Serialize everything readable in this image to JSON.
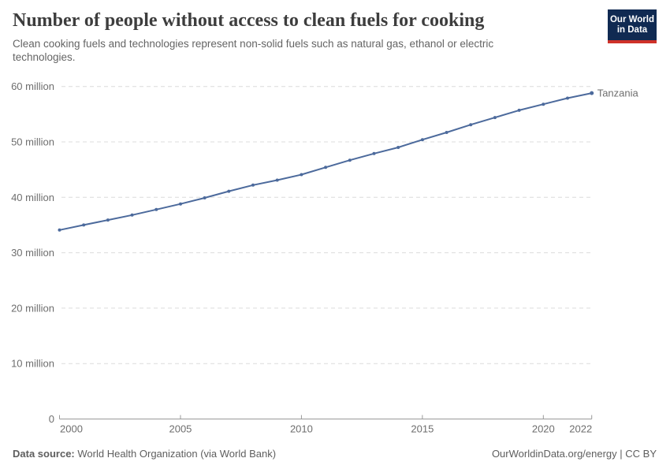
{
  "header": {
    "title": "Number of people without access to clean fuels for cooking",
    "subtitle": "Clean cooking fuels and technologies represent non-solid fuels such as natural gas, ethanol or electric technologies.",
    "logo": {
      "line1": "Our World",
      "line2": "in Data",
      "bg_color": "#102A52",
      "accent_color": "#CF3129"
    }
  },
  "chart_data": {
    "type": "line",
    "title": "Number of people without access to clean fuels for cooking",
    "xlabel": "",
    "ylabel": "",
    "xlim": [
      2000,
      2022
    ],
    "ylim": [
      0,
      60000000
    ],
    "grid": "horizontal-dashed",
    "legend_position": "end-of-line-label",
    "x": [
      2000,
      2001,
      2002,
      2003,
      2004,
      2005,
      2006,
      2007,
      2008,
      2009,
      2010,
      2011,
      2012,
      2013,
      2014,
      2015,
      2016,
      2017,
      2018,
      2019,
      2020,
      2021,
      2022
    ],
    "series": [
      {
        "name": "Tanzania",
        "color": "#4C6A9C",
        "values_millions": [
          34.1,
          35.0,
          35.9,
          36.8,
          37.8,
          38.8,
          39.9,
          41.1,
          42.2,
          43.1,
          44.1,
          45.4,
          46.7,
          47.9,
          49.0,
          50.4,
          51.7,
          53.1,
          54.4,
          55.7,
          56.8,
          57.9,
          58.8
        ]
      }
    ],
    "y_ticks": [
      {
        "value": 0,
        "label": "0"
      },
      {
        "value": 10,
        "label": "10 million"
      },
      {
        "value": 20,
        "label": "20 million"
      },
      {
        "value": 30,
        "label": "30 million"
      },
      {
        "value": 40,
        "label": "40 million"
      },
      {
        "value": 50,
        "label": "50 million"
      },
      {
        "value": 60,
        "label": "60 million"
      }
    ],
    "x_ticks": [
      {
        "value": 2000,
        "label": "2000"
      },
      {
        "value": 2005,
        "label": "2005"
      },
      {
        "value": 2010,
        "label": "2010"
      },
      {
        "value": 2015,
        "label": "2015"
      },
      {
        "value": 2020,
        "label": "2020"
      },
      {
        "value": 2022,
        "label": "2022"
      }
    ]
  },
  "footer": {
    "source_label": "Data source:",
    "source_value": "World Health Organization (via World Bank)",
    "license": "OurWorldinData.org/energy | CC BY"
  }
}
